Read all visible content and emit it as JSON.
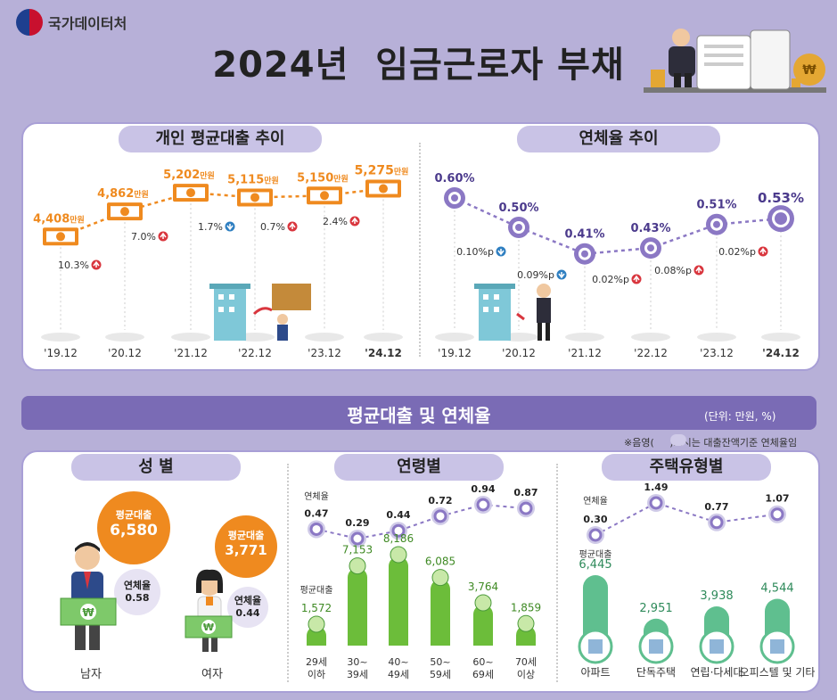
{
  "header": {
    "org": "국가데이터처",
    "title": "2024년  임금근로자 부채"
  },
  "ticks": [
    "'19.12",
    "'20.12",
    "'21.12",
    "'22.12",
    "'23.12",
    "'24.12"
  ],
  "loan_trend": {
    "title": "개인 평균대출 추이",
    "value_labels": [
      "4,408",
      "4,862",
      "5,202",
      "5,115",
      "5,150",
      "5,275"
    ],
    "unit": "만원",
    "changes": [
      {
        "text": "10.3%",
        "dir": "up"
      },
      {
        "text": "7.0%",
        "dir": "up"
      },
      {
        "text": "1.7%",
        "dir": "down"
      },
      {
        "text": "0.7%",
        "dir": "up"
      },
      {
        "text": "2.4%",
        "dir": "up"
      }
    ]
  },
  "delinquency_trend": {
    "title": "연체율 추이",
    "value_labels": [
      "0.60%",
      "0.50%",
      "0.41%",
      "0.43%",
      "0.51%",
      "0.53%"
    ],
    "changes": [
      {
        "text": "0.10%p",
        "dir": "down"
      },
      {
        "text": "0.09%p",
        "dir": "down"
      },
      {
        "text": "0.02%p",
        "dir": "up"
      },
      {
        "text": "0.08%p",
        "dir": "up"
      },
      {
        "text": "0.02%p",
        "dir": "up"
      }
    ]
  },
  "section": {
    "title": "평균대출 및 연체율",
    "unit": "(단위: 만원, %)",
    "note": "※음영(     )표시는 대출잔액기준 연체율임"
  },
  "gender": {
    "title": "성 별",
    "loan_label": "평균대출",
    "rate_label": "연체율",
    "items": [
      {
        "name": "남자",
        "loan": "6,580",
        "rate": "0.58"
      },
      {
        "name": "여자",
        "loan": "3,771",
        "rate": "0.44"
      }
    ]
  },
  "age": {
    "title": "연령별",
    "rate_label": "연체율",
    "loan_label": "평균대출",
    "groups": [
      {
        "line1": "29세",
        "line2": "이하",
        "loan": "1,572",
        "rate": "0.47"
      },
      {
        "line1": "30~",
        "line2": "39세",
        "loan": "7,153",
        "rate": "0.29"
      },
      {
        "line1": "40~",
        "line2": "49세",
        "loan": "8,186",
        "rate": "0.44"
      },
      {
        "line1": "50~",
        "line2": "59세",
        "loan": "6,085",
        "rate": "0.72"
      },
      {
        "line1": "60~",
        "line2": "69세",
        "loan": "3,764",
        "rate": "0.94"
      },
      {
        "line1": "70세",
        "line2": "이상",
        "loan": "1,859",
        "rate": "0.87"
      }
    ]
  },
  "housing": {
    "title": "주택유형별",
    "rate_label": "연체율",
    "loan_label": "평균대출",
    "types": [
      {
        "name": "아파트",
        "loan": "6,445",
        "rate": "0.30"
      },
      {
        "name": "단독주택",
        "loan": "2,951",
        "rate": "1.49"
      },
      {
        "name": "연립·다세대",
        "loan": "3,938",
        "rate": "0.77"
      },
      {
        "name": "오피스텔 및 기타",
        "loan": "4,544",
        "rate": "1.07"
      }
    ]
  },
  "colors": {
    "orange": "#ef8a1f",
    "purple": "#8b78c4",
    "green": "#6cbd3a",
    "teal": "#5fbf8f",
    "up": "#d9363e",
    "down": "#2f7fc1"
  },
  "chart_data": [
    {
      "type": "line",
      "title": "개인 평균대출 추이",
      "categories": [
        "'19.12",
        "'20.12",
        "'21.12",
        "'22.12",
        "'23.12",
        "'24.12"
      ],
      "series": [
        {
          "name": "",
          "values": [
            4408,
            4862,
            5202,
            5115,
            5150,
            5275
          ]
        }
      ],
      "unit": "만원"
    },
    {
      "type": "line",
      "title": "연체율 추이",
      "categories": [
        "'19.12",
        "'20.12",
        "'21.12",
        "'22.12",
        "'23.12",
        "'24.12"
      ],
      "series": [
        {
          "name": "",
          "values": [
            0.6,
            0.5,
            0.41,
            0.43,
            0.51,
            0.53
          ]
        }
      ],
      "unit": "%"
    },
    {
      "type": "bar",
      "title": "연령별",
      "categories": [
        "29세 이하",
        "30~39세",
        "40~49세",
        "50~59세",
        "60~69세",
        "70세 이상"
      ],
      "series": [
        {
          "name": "평균대출",
          "values": [
            1572,
            7153,
            8186,
            6085,
            3764,
            1859
          ]
        },
        {
          "name": "연체율",
          "values": [
            0.47,
            0.29,
            0.44,
            0.72,
            0.94,
            0.87
          ]
        }
      ]
    },
    {
      "type": "bar",
      "title": "주택유형별",
      "categories": [
        "아파트",
        "단독주택",
        "연립·다세대",
        "오피스텔 및 기타"
      ],
      "series": [
        {
          "name": "평균대출",
          "values": [
            6445,
            2951,
            3938,
            4544
          ]
        },
        {
          "name": "연체율",
          "values": [
            0.3,
            1.49,
            0.77,
            1.07
          ]
        }
      ]
    }
  ]
}
